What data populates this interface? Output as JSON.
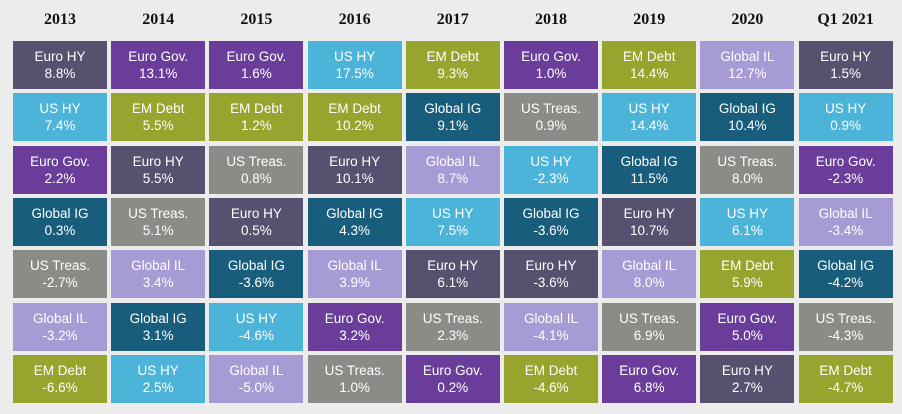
{
  "chart_data": {
    "type": "table",
    "title": "",
    "columns": [
      "2013",
      "2014",
      "2015",
      "2016",
      "2017",
      "2018",
      "2019",
      "2020",
      "Q1 2021"
    ],
    "colors": {
      "Euro HY": "#57506e",
      "Euro Gov.": "#6a3d9a",
      "US HY": "#4cb4d8",
      "EM Debt": "#97a52f",
      "Global IL": "#a79bd6",
      "Global IG": "#185e7c",
      "US Treas.": "#8b8b87"
    },
    "ranking": [
      [
        {
          "asset": "Euro HY",
          "return": "8.8%",
          "value": 8.8
        },
        {
          "asset": "US HY",
          "return": "7.4%",
          "value": 7.4
        },
        {
          "asset": "Euro Gov.",
          "return": "2.2%",
          "value": 2.2
        },
        {
          "asset": "Global IG",
          "return": "0.3%",
          "value": 0.3
        },
        {
          "asset": "US Treas.",
          "return": "-2.7%",
          "value": -2.7
        },
        {
          "asset": "Global IL",
          "return": "-3.2%",
          "value": -3.2
        },
        {
          "asset": "EM Debt",
          "return": "-6.6%",
          "value": -6.6
        }
      ],
      [
        {
          "asset": "Euro Gov.",
          "return": "13.1%",
          "value": 13.1
        },
        {
          "asset": "EM Debt",
          "return": "5.5%",
          "value": 5.5
        },
        {
          "asset": "Euro HY",
          "return": "5.5%",
          "value": 5.5
        },
        {
          "asset": "US Treas.",
          "return": "5.1%",
          "value": 5.1
        },
        {
          "asset": "Global IL",
          "return": "3.4%",
          "value": 3.4
        },
        {
          "asset": "Global IG",
          "return": "3.1%",
          "value": 3.1
        },
        {
          "asset": "US HY",
          "return": "2.5%",
          "value": 2.5
        }
      ],
      [
        {
          "asset": "Euro Gov.",
          "return": "1.6%",
          "value": 1.6
        },
        {
          "asset": "EM Debt",
          "return": "1.2%",
          "value": 1.2
        },
        {
          "asset": "US Treas.",
          "return": "0.8%",
          "value": 0.8
        },
        {
          "asset": "Euro HY",
          "return": "0.5%",
          "value": 0.5
        },
        {
          "asset": "Global IG",
          "return": "-3.6%",
          "value": -3.6
        },
        {
          "asset": "US HY",
          "return": "-4.6%",
          "value": -4.6
        },
        {
          "asset": "Global IL",
          "return": "-5.0%",
          "value": -5.0
        }
      ],
      [
        {
          "asset": "US HY",
          "return": "17.5%",
          "value": 17.5
        },
        {
          "asset": "EM Debt",
          "return": "10.2%",
          "value": 10.2
        },
        {
          "asset": "Euro HY",
          "return": "10.1%",
          "value": 10.1
        },
        {
          "asset": "Global IG",
          "return": "4.3%",
          "value": 4.3
        },
        {
          "asset": "Global IL",
          "return": "3.9%",
          "value": 3.9
        },
        {
          "asset": "Euro Gov.",
          "return": "3.2%",
          "value": 3.2
        },
        {
          "asset": "US Treas.",
          "return": "1.0%",
          "value": 1.0
        }
      ],
      [
        {
          "asset": "EM Debt",
          "return": "9.3%",
          "value": 9.3
        },
        {
          "asset": "Global IG",
          "return": "9.1%",
          "value": 9.1
        },
        {
          "asset": "Global IL",
          "return": "8.7%",
          "value": 8.7
        },
        {
          "asset": "US HY",
          "return": "7.5%",
          "value": 7.5
        },
        {
          "asset": "Euro HY",
          "return": "6.1%",
          "value": 6.1
        },
        {
          "asset": "US Treas.",
          "return": "2.3%",
          "value": 2.3
        },
        {
          "asset": "Euro Gov.",
          "return": "0.2%",
          "value": 0.2
        }
      ],
      [
        {
          "asset": "Euro Gov.",
          "return": "1.0%",
          "value": 1.0
        },
        {
          "asset": "US Treas.",
          "return": "0.9%",
          "value": 0.9
        },
        {
          "asset": "US HY",
          "return": "-2.3%",
          "value": -2.3
        },
        {
          "asset": "Global IG",
          "return": "-3.6%",
          "value": -3.6
        },
        {
          "asset": "Euro HY",
          "return": "-3.6%",
          "value": -3.6
        },
        {
          "asset": "Global IL",
          "return": "-4.1%",
          "value": -4.1
        },
        {
          "asset": "EM Debt",
          "return": "-4.6%",
          "value": -4.6
        }
      ],
      [
        {
          "asset": "EM Debt",
          "return": "14.4%",
          "value": 14.4
        },
        {
          "asset": "US HY",
          "return": "14.4%",
          "value": 14.4
        },
        {
          "asset": "Global IG",
          "return": "11.5%",
          "value": 11.5
        },
        {
          "asset": "Euro HY",
          "return": "10.7%",
          "value": 10.7
        },
        {
          "asset": "Global IL",
          "return": "8.0%",
          "value": 8.0
        },
        {
          "asset": "US Treas.",
          "return": "6.9%",
          "value": 6.9
        },
        {
          "asset": "Euro Gov.",
          "return": "6.8%",
          "value": 6.8
        }
      ],
      [
        {
          "asset": "Global IL",
          "return": "12.7%",
          "value": 12.7
        },
        {
          "asset": "Global IG",
          "return": "10.4%",
          "value": 10.4
        },
        {
          "asset": "US Treas.",
          "return": "8.0%",
          "value": 8.0
        },
        {
          "asset": "US HY",
          "return": "6.1%",
          "value": 6.1
        },
        {
          "asset": "EM Debt",
          "return": "5.9%",
          "value": 5.9
        },
        {
          "asset": "Euro Gov.",
          "return": "5.0%",
          "value": 5.0
        },
        {
          "asset": "Euro HY",
          "return": "2.7%",
          "value": 2.7
        }
      ],
      [
        {
          "asset": "Euro HY",
          "return": "1.5%",
          "value": 1.5
        },
        {
          "asset": "US HY",
          "return": "0.9%",
          "value": 0.9
        },
        {
          "asset": "Euro Gov.",
          "return": "-2.3%",
          "value": -2.3
        },
        {
          "asset": "Global IL",
          "return": "-3.4%",
          "value": -3.4
        },
        {
          "asset": "Global IG",
          "return": "-4.2%",
          "value": -4.2
        },
        {
          "asset": "US Treas.",
          "return": "-4.3%",
          "value": -4.3
        },
        {
          "asset": "EM Debt",
          "return": "-4.7%",
          "value": -4.7
        }
      ]
    ]
  }
}
